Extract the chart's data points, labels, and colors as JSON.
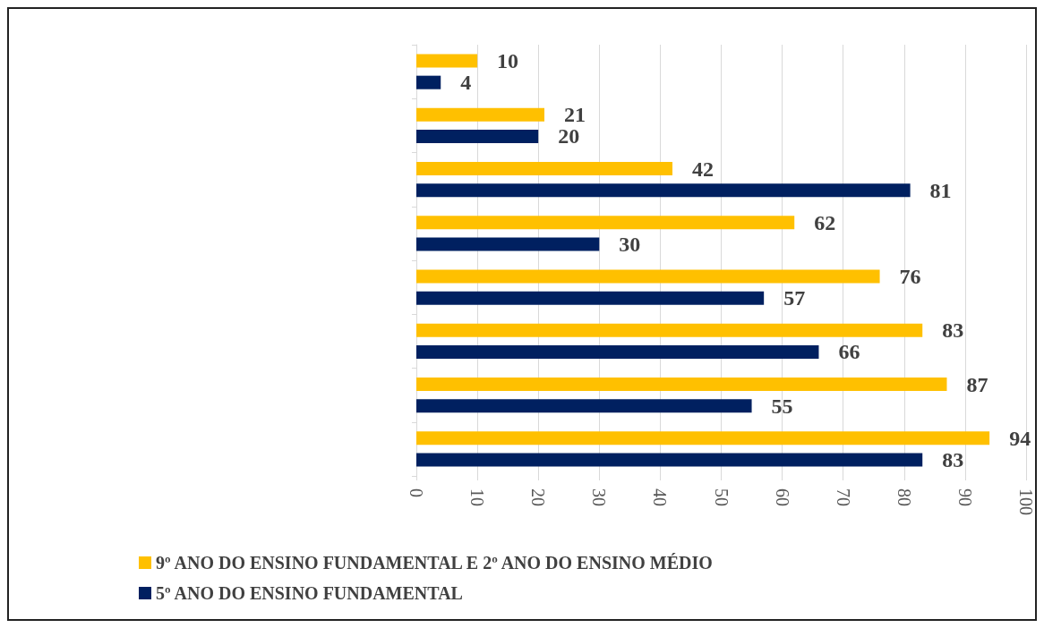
{
  "chart_data": {
    "type": "bar",
    "orientation": "horizontal",
    "categories": [
      null,
      null,
      null,
      null,
      null,
      null,
      null,
      null
    ],
    "series": [
      {
        "name": "9º ANO DO ENSINO FUNDAMENTAL E 2º ANO DO ENSINO MÉDIO",
        "color": "#ffc000",
        "values": [
          10,
          21,
          42,
          62,
          76,
          83,
          87,
          94
        ]
      },
      {
        "name": "5º ANO DO ENSINO FUNDAMENTAL",
        "color": "#002060",
        "values": [
          4,
          20,
          81,
          30,
          57,
          66,
          55,
          83
        ]
      }
    ],
    "xlim": [
      0,
      100
    ],
    "xticks": [
      0,
      10,
      20,
      30,
      40,
      50,
      60,
      70,
      80,
      90,
      100
    ],
    "grid": "x",
    "legend": "bottom left",
    "data_labels": true
  }
}
